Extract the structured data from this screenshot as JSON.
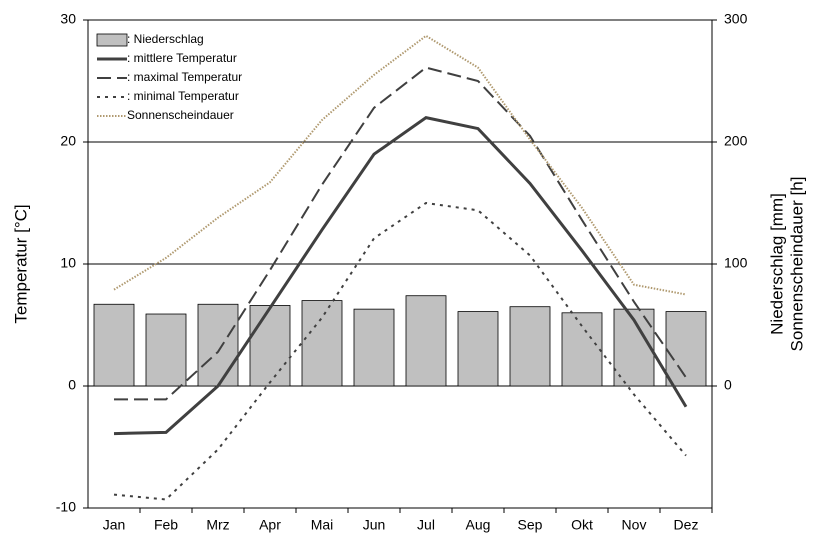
{
  "chart_data": {
    "type": "bar-line",
    "categories": [
      "Jan",
      "Feb",
      "Mrz",
      "Apr",
      "Mai",
      "Jun",
      "Jul",
      "Aug",
      "Sep",
      "Okt",
      "Nov",
      "Dez"
    ],
    "y_label": "Temperatur [°C]",
    "y2_label": [
      "Niederschlag [mm]",
      "Sonnenscheindauer [h]"
    ],
    "ylim": [
      -10,
      30
    ],
    "yticks": [
      -10,
      0,
      10,
      20,
      30
    ],
    "y2lim": [
      -100,
      300
    ],
    "y2ticks": [
      0,
      100,
      200,
      300
    ],
    "grid": true,
    "legend": "upper left",
    "series": [
      {
        "name": ": Niederschlag",
        "kind": "bar",
        "axis": "y2",
        "color": "#c0c0c0",
        "values": [
          67,
          59,
          67,
          66,
          70,
          63,
          74,
          61,
          65,
          60,
          63,
          61
        ]
      },
      {
        "name": ": mittlere Temperatur",
        "kind": "line",
        "dash": "solid",
        "color": "#404040",
        "values": [
          -3.9,
          -3.8,
          0.0,
          6.4,
          12.8,
          19.0,
          22.0,
          21.1,
          16.6,
          11.1,
          5.4,
          -1.7
        ]
      },
      {
        "name": ": maximal Temperatur",
        "kind": "line",
        "dash": "dashed",
        "color": "#404040",
        "values": [
          -1.1,
          -1.1,
          2.8,
          9.5,
          16.5,
          22.8,
          26.1,
          25.0,
          20.5,
          13.6,
          6.9,
          0.7
        ]
      },
      {
        "name": ": minimal Temperatur",
        "kind": "line",
        "dash": "dotted",
        "color": "#404040",
        "values": [
          -8.9,
          -9.3,
          -5.2,
          0.3,
          5.6,
          12.1,
          15.0,
          14.4,
          10.7,
          4.9,
          -0.7,
          -5.7
        ]
      },
      {
        "name": "Sonnenscheindauer",
        "kind": "line",
        "dash": "fine",
        "axis": "y2",
        "color": "#b09a70",
        "values": [
          79,
          105,
          138,
          167,
          218,
          255,
          287,
          261,
          202,
          146,
          83,
          75
        ]
      }
    ]
  }
}
